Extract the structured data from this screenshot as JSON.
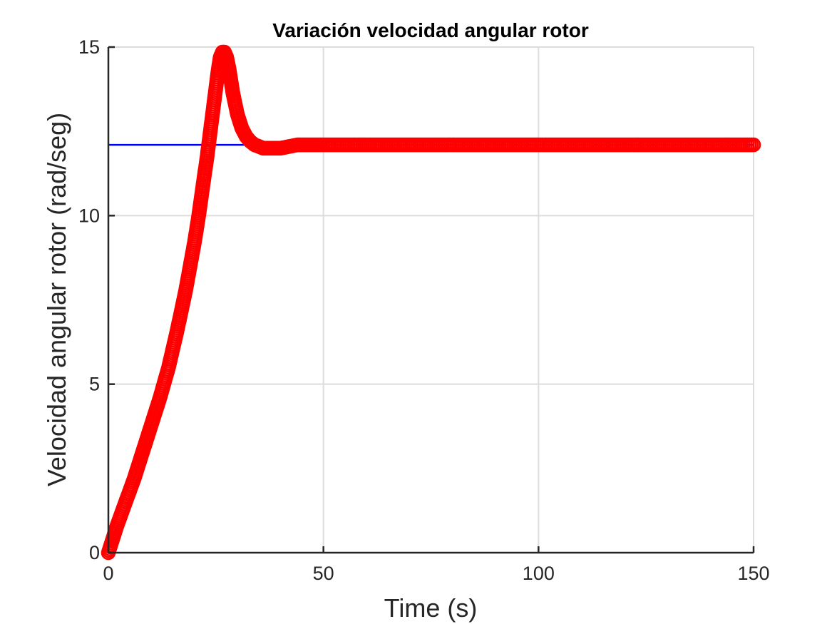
{
  "chart_data": {
    "type": "scatter",
    "title": "Variación velocidad angular rotor",
    "xlabel": "Time (s)",
    "ylabel": "Velocidad angular rotor (rad/seg)",
    "xlim": [
      0,
      150
    ],
    "ylim": [
      0,
      15
    ],
    "xticks": [
      0,
      50,
      100,
      150
    ],
    "xtick_labels": [
      "0",
      "50",
      "100",
      "150"
    ],
    "yticks": [
      0,
      5,
      10,
      15
    ],
    "ytick_labels": [
      "0",
      "5",
      "10",
      "15"
    ],
    "grid": true,
    "reference_line": {
      "y": 12.1,
      "x": [
        0,
        150
      ],
      "color": "#0000ff",
      "style": "line"
    },
    "series": [
      {
        "color": "#ff0000",
        "marker": "circle",
        "x": [
          0,
          2,
          4,
          6,
          8,
          10,
          12,
          14,
          16,
          18,
          20,
          21,
          22,
          23,
          24,
          25,
          25.5,
          26,
          26.5,
          27,
          27.5,
          28,
          28.5,
          29,
          30,
          31,
          32,
          33,
          34,
          35,
          36,
          37,
          38,
          39,
          40,
          42,
          44,
          46,
          50,
          60,
          70,
          80,
          90,
          100,
          110,
          120,
          130,
          140,
          150
        ],
        "y": [
          0,
          0.8,
          1.5,
          2.2,
          3.0,
          3.8,
          4.6,
          5.5,
          6.6,
          7.8,
          9.2,
          10.0,
          10.9,
          11.8,
          12.8,
          13.8,
          14.3,
          14.7,
          14.85,
          14.85,
          14.7,
          14.4,
          14.0,
          13.6,
          13.0,
          12.6,
          12.35,
          12.2,
          12.1,
          12.05,
          12.0,
          12.0,
          12.0,
          12.0,
          12.0,
          12.05,
          12.1,
          12.1,
          12.1,
          12.1,
          12.1,
          12.1,
          12.1,
          12.1,
          12.1,
          12.1,
          12.1,
          12.1,
          12.1
        ]
      }
    ]
  }
}
